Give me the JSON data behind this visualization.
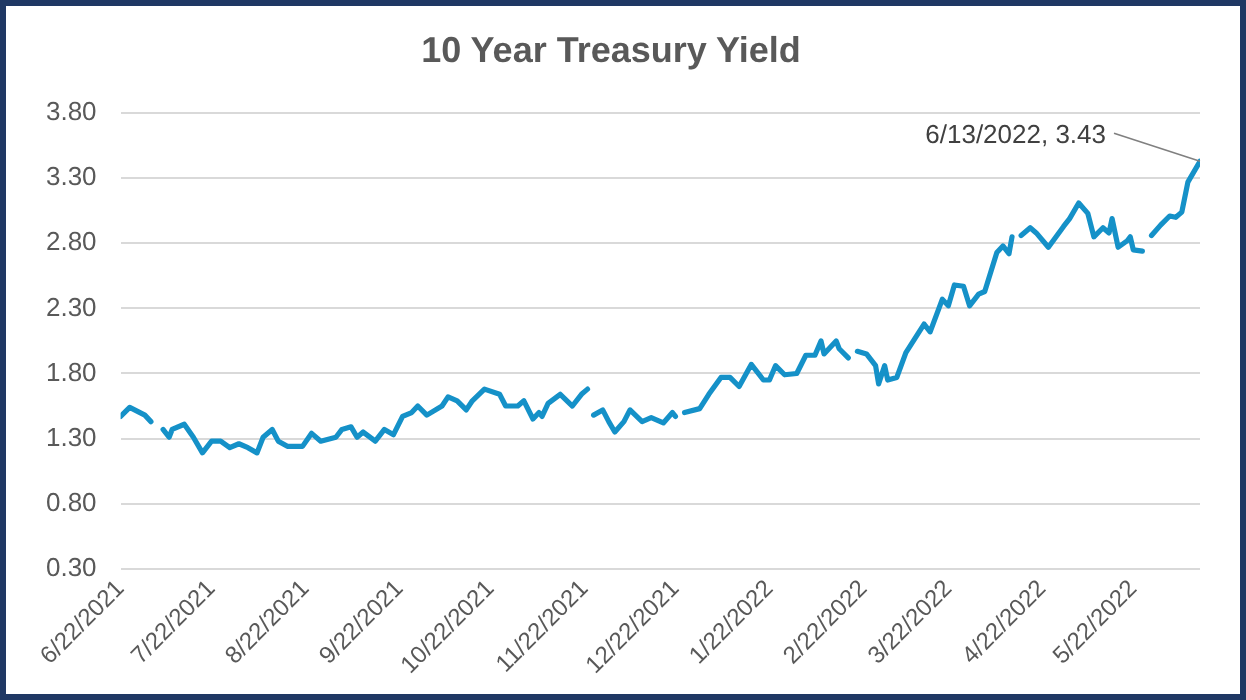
{
  "chart_data": {
    "type": "line",
    "title": "10 Year Treasury Yield",
    "x": [
      "2021-06-22",
      "2021-06-25",
      "2021-06-30",
      "2021-07-02",
      "2021-07-04",
      "2021-07-06",
      "2021-07-08",
      "2021-07-09",
      "2021-07-13",
      "2021-07-16",
      "2021-07-19",
      "2021-07-22",
      "2021-07-25",
      "2021-07-28",
      "2021-07-31",
      "2021-08-03",
      "2021-08-06",
      "2021-08-08",
      "2021-08-11",
      "2021-08-13",
      "2021-08-16",
      "2021-08-21",
      "2021-08-24",
      "2021-08-27",
      "2021-09-01",
      "2021-09-03",
      "2021-09-06",
      "2021-09-08",
      "2021-09-10",
      "2021-09-14",
      "2021-09-17",
      "2021-09-20",
      "2021-09-23",
      "2021-09-26",
      "2021-09-28",
      "2021-10-01",
      "2021-10-06",
      "2021-10-08",
      "2021-10-11",
      "2021-10-14",
      "2021-10-16",
      "2021-10-20",
      "2021-10-25",
      "2021-10-27",
      "2021-10-31",
      "2021-11-02",
      "2021-11-05",
      "2021-11-07",
      "2021-11-08",
      "2021-11-10",
      "2021-11-14",
      "2021-11-18",
      "2021-11-21",
      "2021-11-23",
      "2021-11-24",
      "2021-11-25",
      "2021-11-28",
      "2021-11-30",
      "2021-12-02",
      "2021-12-05",
      "2021-12-07",
      "2021-12-11",
      "2021-12-14",
      "2021-12-18",
      "2021-12-21",
      "2021-12-22",
      "2021-12-23",
      "2021-12-25",
      "2021-12-30",
      "2022-01-02",
      "2022-01-06",
      "2022-01-09",
      "2022-01-12",
      "2022-01-16",
      "2022-01-20",
      "2022-01-22",
      "2022-01-24",
      "2022-01-27",
      "2022-01-31",
      "2022-02-03",
      "2022-02-06",
      "2022-02-08",
      "2022-02-09",
      "2022-02-13",
      "2022-02-14",
      "2022-02-17",
      "2022-02-18",
      "2022-02-20",
      "2022-02-23",
      "2022-02-26",
      "2022-02-27",
      "2022-03-01",
      "2022-03-02",
      "2022-03-05",
      "2022-03-08",
      "2022-03-11",
      "2022-03-14",
      "2022-03-16",
      "2022-03-20",
      "2022-03-22",
      "2022-03-24",
      "2022-03-27",
      "2022-03-29",
      "2022-04-01",
      "2022-04-03",
      "2022-04-07",
      "2022-04-09",
      "2022-04-11",
      "2022-04-12",
      "2022-04-13",
      "2022-04-15",
      "2022-04-18",
      "2022-04-20",
      "2022-04-24",
      "2022-04-29",
      "2022-05-01",
      "2022-05-04",
      "2022-05-07",
      "2022-05-09",
      "2022-05-12",
      "2022-05-14",
      "2022-05-15",
      "2022-05-17",
      "2022-05-20",
      "2022-05-21",
      "2022-05-22",
      "2022-05-25",
      "2022-05-26",
      "2022-05-28",
      "2022-05-31",
      "2022-06-03",
      "2022-06-05",
      "2022-06-07",
      "2022-06-09",
      "2022-06-13"
    ],
    "series": [
      {
        "color": "#1591c8",
        "values": [
          1.47,
          1.54,
          1.48,
          1.43,
          null,
          1.37,
          1.31,
          1.37,
          1.41,
          1.31,
          1.19,
          1.28,
          1.28,
          1.23,
          1.26,
          1.23,
          1.19,
          1.31,
          1.37,
          1.28,
          1.24,
          1.24,
          1.34,
          1.28,
          1.31,
          1.37,
          1.39,
          1.31,
          1.35,
          1.28,
          1.37,
          1.33,
          1.47,
          1.5,
          1.55,
          1.48,
          1.55,
          1.62,
          1.59,
          1.52,
          1.59,
          1.68,
          1.64,
          1.55,
          1.55,
          1.59,
          1.45,
          1.5,
          1.47,
          1.57,
          1.64,
          1.55,
          1.64,
          1.68,
          null,
          1.48,
          1.52,
          1.43,
          1.35,
          1.43,
          1.52,
          1.43,
          1.46,
          1.42,
          1.5,
          1.47,
          null,
          1.5,
          1.53,
          1.64,
          1.77,
          1.77,
          1.7,
          1.87,
          1.75,
          1.75,
          1.86,
          1.79,
          1.8,
          1.94,
          1.94,
          2.05,
          1.95,
          2.05,
          1.99,
          1.92,
          null,
          1.97,
          1.95,
          1.86,
          1.72,
          1.86,
          1.75,
          1.77,
          1.96,
          2.07,
          2.18,
          2.12,
          2.37,
          2.32,
          2.48,
          2.47,
          2.32,
          2.41,
          2.43,
          2.73,
          2.78,
          2.72,
          2.85,
          null,
          2.86,
          2.92,
          2.88,
          2.77,
          2.93,
          2.99,
          3.11,
          3.03,
          2.85,
          2.92,
          2.88,
          2.99,
          2.77,
          2.82,
          2.85,
          2.75,
          2.74,
          null,
          2.86,
          2.94,
          3.01,
          3.0,
          3.04,
          3.27,
          3.43
        ]
      }
    ],
    "xlim": [
      "2021-06-22",
      "2022-06-13"
    ],
    "xticks": [
      {
        "value": "2021-06-22",
        "label": "6/22/2021"
      },
      {
        "value": "2021-07-22",
        "label": "7/22/2021"
      },
      {
        "value": "2021-08-22",
        "label": "8/22/2021"
      },
      {
        "value": "2021-09-22",
        "label": "9/22/2021"
      },
      {
        "value": "2021-10-22",
        "label": "10/22/2021"
      },
      {
        "value": "2021-11-22",
        "label": "11/22/2021"
      },
      {
        "value": "2021-12-22",
        "label": "12/22/2021"
      },
      {
        "value": "2022-01-22",
        "label": "1/22/2022"
      },
      {
        "value": "2022-02-22",
        "label": "2/22/2022"
      },
      {
        "value": "2022-03-22",
        "label": "3/22/2022"
      },
      {
        "value": "2022-04-22",
        "label": "4/22/2022"
      },
      {
        "value": "2022-05-22",
        "label": "5/22/2022"
      }
    ],
    "ylim": [
      0.3,
      3.8
    ],
    "yticks": [
      {
        "value": 0.3,
        "label": "0.30"
      },
      {
        "value": 0.8,
        "label": "0.80"
      },
      {
        "value": 1.3,
        "label": "1.30"
      },
      {
        "value": 1.8,
        "label": "1.80"
      },
      {
        "value": 2.3,
        "label": "2.30"
      },
      {
        "value": 2.8,
        "label": "2.80"
      },
      {
        "value": 3.3,
        "label": "3.30"
      },
      {
        "value": 3.8,
        "label": "3.80"
      }
    ],
    "grid": "y",
    "legend": false,
    "marker": "none",
    "line_style": "solid",
    "annotations": [
      {
        "text": "6/13/2022, 3.43",
        "x": "2022-06-13",
        "y": 3.43
      }
    ]
  }
}
